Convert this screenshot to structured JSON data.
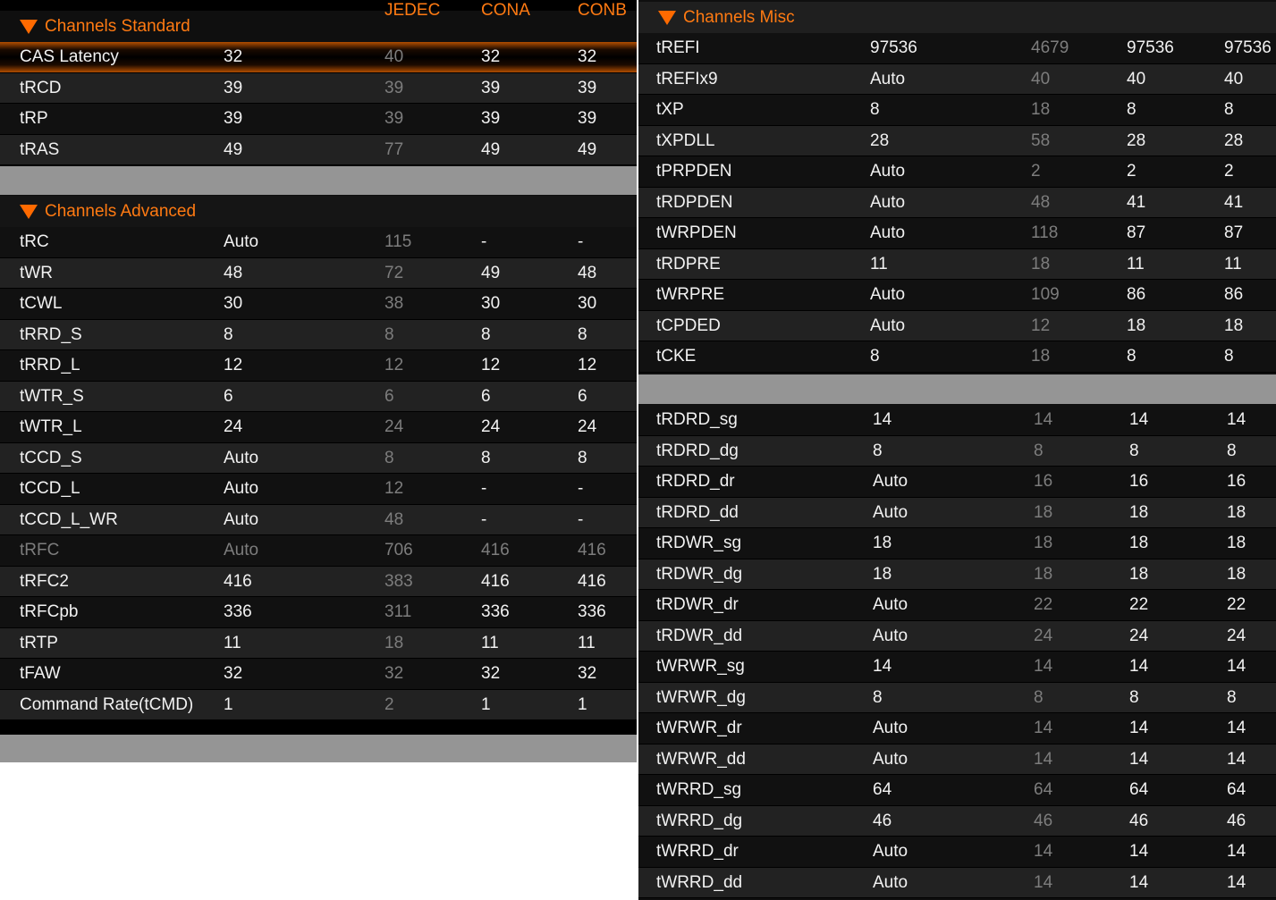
{
  "columns": {
    "jedec": "JEDEC",
    "cona": "CONA",
    "conb": "CONB"
  },
  "colors": {
    "accent": "#ff7a12",
    "row_dark": "#111111",
    "row_light": "#222222",
    "separator": "#959595"
  },
  "sections": {
    "standard": {
      "title": "Channels Standard",
      "icon": "triangle-down-icon",
      "rows": [
        [
          "CAS Latency",
          "32",
          "40",
          "32",
          "32"
        ],
        [
          "tRCD",
          "39",
          "39",
          "39",
          "39"
        ],
        [
          "tRP",
          "39",
          "39",
          "39",
          "39"
        ],
        [
          "tRAS",
          "49",
          "77",
          "49",
          "49"
        ]
      ],
      "selected": 0
    },
    "advanced": {
      "title": "Channels Advanced",
      "icon": "triangle-down-icon",
      "rows": [
        [
          "tRC",
          "Auto",
          "115",
          "-",
          "-"
        ],
        [
          "tWR",
          "48",
          "72",
          "49",
          "48"
        ],
        [
          "tCWL",
          "30",
          "38",
          "30",
          "30"
        ],
        [
          "tRRD_S",
          "8",
          "8",
          "8",
          "8"
        ],
        [
          "tRRD_L",
          "12",
          "12",
          "12",
          "12"
        ],
        [
          "tWTR_S",
          "6",
          "6",
          "6",
          "6"
        ],
        [
          "tWTR_L",
          "24",
          "24",
          "24",
          "24"
        ],
        [
          "tCCD_S",
          "Auto",
          "8",
          "8",
          "8"
        ],
        [
          "tCCD_L",
          "Auto",
          "12",
          "-",
          "-"
        ],
        [
          "tCCD_L_WR",
          "Auto",
          "48",
          "-",
          "-"
        ],
        [
          "tRFC",
          "Auto",
          "706",
          "416",
          "416"
        ],
        [
          "tRFC2",
          "416",
          "383",
          "416",
          "416"
        ],
        [
          "tRFCpb",
          "336",
          "311",
          "336",
          "336"
        ],
        [
          "tRTP",
          "11",
          "18",
          "11",
          "11"
        ],
        [
          "tFAW",
          "32",
          "32",
          "32",
          "32"
        ],
        [
          "Command Rate(tCMD)",
          "1",
          "2",
          "1",
          "1"
        ]
      ],
      "disabled": 10
    },
    "misc": {
      "title": "Channels Misc",
      "icon": "triangle-down-icon",
      "rows": [
        [
          "tREFI",
          "97536",
          "4679",
          "97536",
          "97536"
        ],
        [
          "tREFIx9",
          "Auto",
          "40",
          "40",
          "40"
        ],
        [
          "tXP",
          "8",
          "18",
          "8",
          "8"
        ],
        [
          "tXPDLL",
          "28",
          "58",
          "28",
          "28"
        ],
        [
          "tPRPDEN",
          "Auto",
          "2",
          "2",
          "2"
        ],
        [
          "tRDPDEN",
          "Auto",
          "48",
          "41",
          "41"
        ],
        [
          "tWRPDEN",
          "Auto",
          "118",
          "87",
          "87"
        ],
        [
          "tRDPRE",
          "11",
          "18",
          "11",
          "11"
        ],
        [
          "tWRPRE",
          "Auto",
          "109",
          "86",
          "86"
        ],
        [
          "tCPDED",
          "Auto",
          "12",
          "18",
          "18"
        ],
        [
          "tCKE",
          "8",
          "18",
          "8",
          "8"
        ]
      ]
    },
    "turnaround": {
      "rows": [
        [
          "tRDRD_sg",
          "14",
          "14",
          "14",
          "14"
        ],
        [
          "tRDRD_dg",
          "8",
          "8",
          "8",
          "8"
        ],
        [
          "tRDRD_dr",
          "Auto",
          "16",
          "16",
          "16"
        ],
        [
          "tRDRD_dd",
          "Auto",
          "18",
          "18",
          "18"
        ],
        [
          "tRDWR_sg",
          "18",
          "18",
          "18",
          "18"
        ],
        [
          "tRDWR_dg",
          "18",
          "18",
          "18",
          "18"
        ],
        [
          "tRDWR_dr",
          "Auto",
          "22",
          "22",
          "22"
        ],
        [
          "tRDWR_dd",
          "Auto",
          "24",
          "24",
          "24"
        ],
        [
          "tWRWR_sg",
          "14",
          "14",
          "14",
          "14"
        ],
        [
          "tWRWR_dg",
          "8",
          "8",
          "8",
          "8"
        ],
        [
          "tWRWR_dr",
          "Auto",
          "14",
          "14",
          "14"
        ],
        [
          "tWRWR_dd",
          "Auto",
          "14",
          "14",
          "14"
        ],
        [
          "tWRRD_sg",
          "64",
          "64",
          "64",
          "64"
        ],
        [
          "tWRRD_dg",
          "46",
          "46",
          "46",
          "46"
        ],
        [
          "tWRRD_dr",
          "Auto",
          "14",
          "14",
          "14"
        ],
        [
          "tWRRD_dd",
          "Auto",
          "14",
          "14",
          "14"
        ]
      ]
    }
  }
}
